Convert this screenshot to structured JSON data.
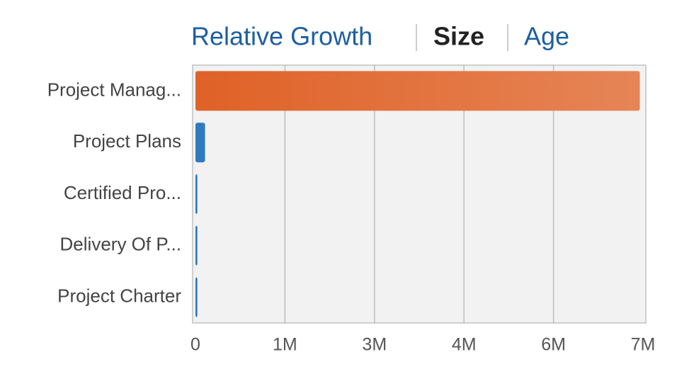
{
  "tabs": [
    "Relative Growth",
    "Size",
    "Age"
  ],
  "selected_tab": 1,
  "chart_data": {
    "type": "barh",
    "categories": [
      "Project Manag...",
      "Project Plans",
      "Certified Pro...",
      "Delivery Of P...",
      "Project Charter"
    ],
    "values": [
      6950000,
      150000,
      30000,
      30000,
      30000
    ],
    "colors": [
      "#df6227",
      "#2f7bbf",
      "#2f7bbf",
      "#2f7bbf",
      "#2f7bbf"
    ],
    "xlim": [
      0,
      7000000
    ],
    "xticks": [
      0,
      {
        "value": 1400000,
        "label": "1M"
      },
      {
        "value": 2800000,
        "label": "3M"
      },
      {
        "value": 4200000,
        "label": "4M"
      },
      {
        "value": 5600000,
        "label": "6M"
      },
      {
        "value": 7000000,
        "label": "7M"
      }
    ],
    "grid": true
  }
}
